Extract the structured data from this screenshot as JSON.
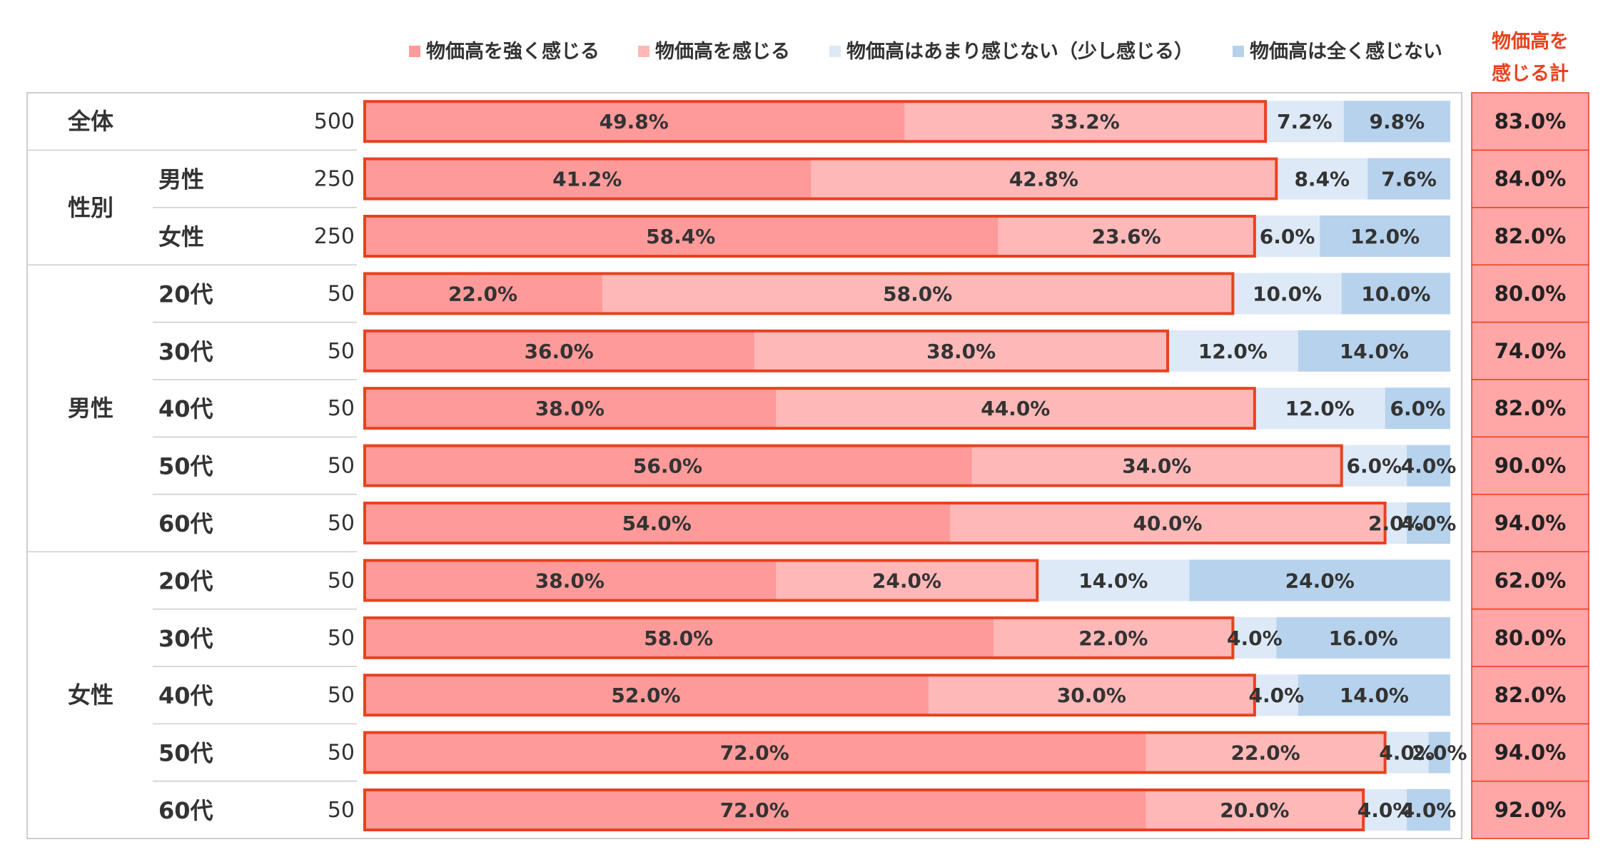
{
  "chart_data": {
    "type": "bar",
    "orientation": "horizontal-stacked-100",
    "legend": [
      {
        "label": "物価高を強く感じる",
        "color": "#ff9a9a"
      },
      {
        "label": "物価高を感じる",
        "color": "#ffb8b8"
      },
      {
        "label": "物価高はあまり感じない（少し感じる）",
        "color": "#dde9f7"
      },
      {
        "label": "物価高は全く感じない",
        "color": "#b7d2ec"
      }
    ],
    "total_header": [
      "物価高を",
      "感じる計"
    ],
    "highlight_color": "#e8421f",
    "total_fill": "#ffa6a6",
    "groups": [
      {
        "label": "全体",
        "rows": [
          0
        ]
      },
      {
        "label": "性別",
        "rows": [
          1,
          2
        ]
      },
      {
        "label": "男性",
        "rows": [
          3,
          4,
          5,
          6,
          7
        ]
      },
      {
        "label": "女性",
        "rows": [
          8,
          9,
          10,
          11,
          12
        ]
      }
    ],
    "rows": [
      {
        "sub": "",
        "n": "500",
        "values": [
          49.8,
          33.2,
          7.2,
          9.8
        ],
        "labels": [
          "49.8%",
          "33.2%",
          "7.2%",
          "9.8%"
        ],
        "total": "83.0%"
      },
      {
        "sub": "男性",
        "n": "250",
        "values": [
          41.2,
          42.8,
          8.4,
          7.6
        ],
        "labels": [
          "41.2%",
          "42.8%",
          "8.4%",
          "7.6%"
        ],
        "total": "84.0%"
      },
      {
        "sub": "女性",
        "n": "250",
        "values": [
          58.4,
          23.6,
          6.0,
          12.0
        ],
        "labels": [
          "58.4%",
          "23.6%",
          "6.0%",
          "12.0%"
        ],
        "total": "82.0%"
      },
      {
        "sub": "20代",
        "n": "50",
        "values": [
          22.0,
          58.0,
          10.0,
          10.0
        ],
        "labels": [
          "22.0%",
          "58.0%",
          "10.0%",
          "10.0%"
        ],
        "total": "80.0%"
      },
      {
        "sub": "30代",
        "n": "50",
        "values": [
          36.0,
          38.0,
          12.0,
          14.0
        ],
        "labels": [
          "36.0%",
          "38.0%",
          "12.0%",
          "14.0%"
        ],
        "total": "74.0%"
      },
      {
        "sub": "40代",
        "n": "50",
        "values": [
          38.0,
          44.0,
          12.0,
          6.0
        ],
        "labels": [
          "38.0%",
          "44.0%",
          "12.0%",
          "6.0%"
        ],
        "total": "82.0%"
      },
      {
        "sub": "50代",
        "n": "50",
        "values": [
          56.0,
          34.0,
          6.0,
          4.0
        ],
        "labels": [
          "56.0%",
          "34.0%",
          "6.0%",
          "4.0%"
        ],
        "total": "90.0%"
      },
      {
        "sub": "60代",
        "n": "50",
        "values": [
          54.0,
          40.0,
          2.0,
          4.0
        ],
        "labels": [
          "54.0%",
          "40.0%",
          "2.0%",
          "4.0%"
        ],
        "total": "94.0%"
      },
      {
        "sub": "20代",
        "n": "50",
        "values": [
          38.0,
          24.0,
          14.0,
          24.0
        ],
        "labels": [
          "38.0%",
          "24.0%",
          "14.0%",
          "24.0%"
        ],
        "total": "62.0%"
      },
      {
        "sub": "30代",
        "n": "50",
        "values": [
          58.0,
          22.0,
          4.0,
          16.0
        ],
        "labels": [
          "58.0%",
          "22.0%",
          "4.0%",
          "16.0%"
        ],
        "total": "80.0%"
      },
      {
        "sub": "40代",
        "n": "50",
        "values": [
          52.0,
          30.0,
          4.0,
          14.0
        ],
        "labels": [
          "52.0%",
          "30.0%",
          "4.0%",
          "14.0%"
        ],
        "total": "82.0%"
      },
      {
        "sub": "50代",
        "n": "50",
        "values": [
          72.0,
          22.0,
          4.0,
          2.0
        ],
        "labels": [
          "72.0%",
          "22.0%",
          "4.0%",
          "2.0%"
        ],
        "total": "94.0%"
      },
      {
        "sub": "60代",
        "n": "50",
        "values": [
          72.0,
          20.0,
          4.0,
          4.0
        ],
        "labels": [
          "72.0%",
          "20.0%",
          "4.0%",
          "4.0%"
        ],
        "total": "92.0%"
      }
    ]
  }
}
